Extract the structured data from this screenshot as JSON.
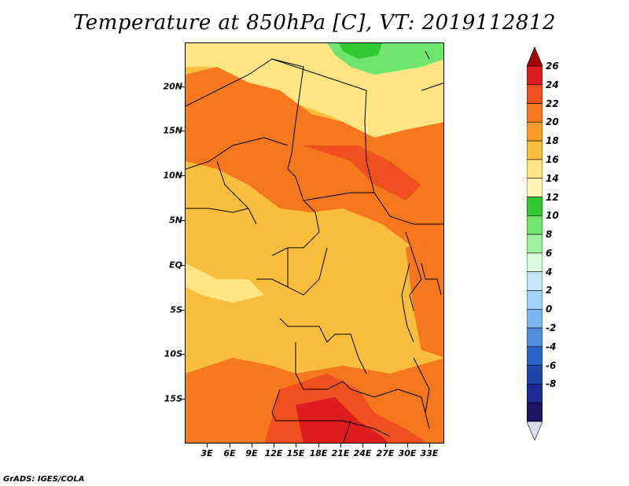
{
  "title": "Temperature at 850hPa [C], VT: 2019112812",
  "credit": "GrADS: IGES/COLA",
  "lat_labels": [
    "20N",
    "15N",
    "10N",
    "5N",
    "EQ",
    "5S",
    "10S",
    "15S"
  ],
  "lon_labels": [
    "3E",
    "6E",
    "9E",
    "12E",
    "15E",
    "18E",
    "21E",
    "24E",
    "27E",
    "30E",
    "33E"
  ],
  "colorbar": {
    "labels": [
      "26",
      "24",
      "22",
      "20",
      "18",
      "16",
      "14",
      "12",
      "10",
      "8",
      "6",
      "4",
      "2",
      "0",
      "-2",
      "-4",
      "-6",
      "-8"
    ],
    "colors": [
      "#a50000",
      "#dc1e1e",
      "#f0501e",
      "#f5781e",
      "#fa9b28",
      "#fbbe3c",
      "#ffe682",
      "#fff5b4",
      "#32c832",
      "#6ee66e",
      "#a0f0a0",
      "#dcfadc",
      "#c8e6fa",
      "#a0d2fa",
      "#78b4f0",
      "#508cdc",
      "#2864c8",
      "#1e46aa",
      "#1e2896",
      "#1e1464",
      "#dcdcf0"
    ]
  },
  "chart_data": {
    "type": "heatmap",
    "title": "Temperature at 850hPa [C], VT: 2019112812",
    "variable": "Temperature at 850hPa",
    "units": "C",
    "valid_time": "2019112812",
    "lon_range": [
      0,
      35
    ],
    "lat_range": [
      -20,
      24
    ],
    "x_ticks": [
      "3E",
      "6E",
      "9E",
      "12E",
      "15E",
      "18E",
      "21E",
      "24E",
      "27E",
      "30E",
      "33E"
    ],
    "y_ticks": [
      "20N",
      "15N",
      "10N",
      "5N",
      "EQ",
      "5S",
      "10S",
      "15S"
    ],
    "color_levels": [
      26,
      24,
      22,
      20,
      18,
      16,
      14,
      12,
      10,
      8,
      6,
      4,
      2,
      0,
      -2,
      -4,
      -6,
      -8
    ]
  }
}
